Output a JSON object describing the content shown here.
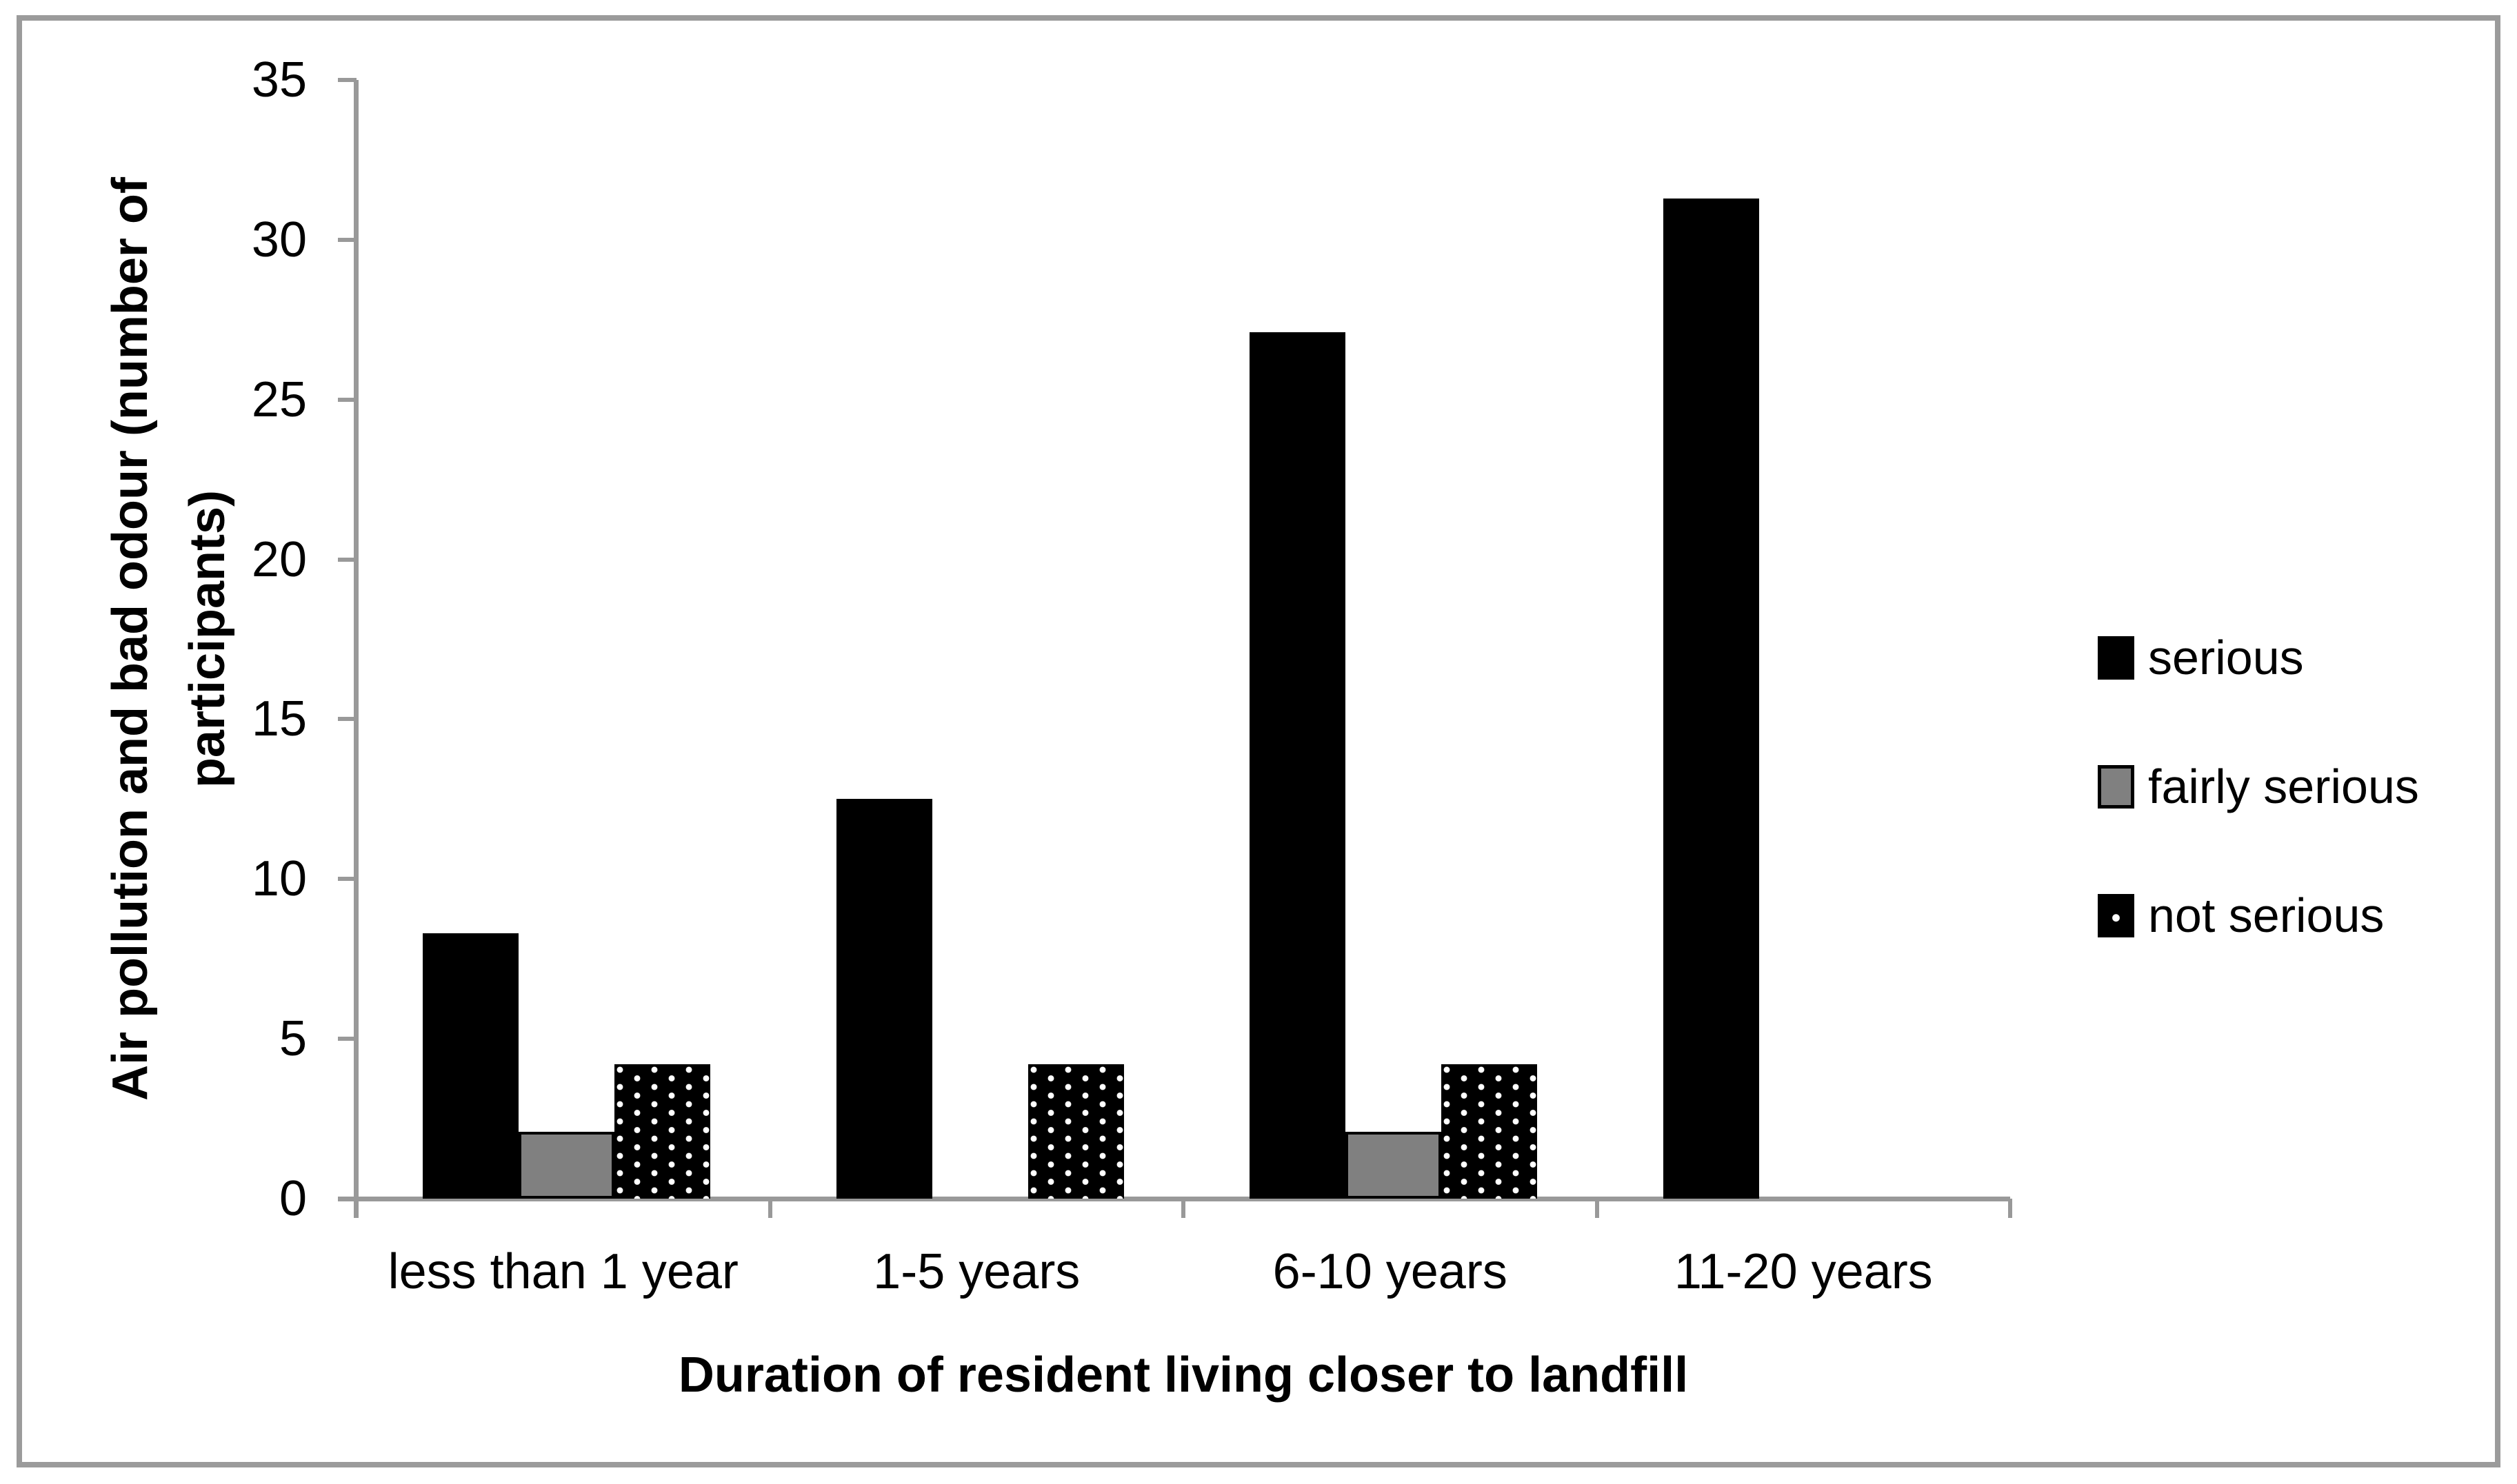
{
  "chart_data": {
    "type": "bar",
    "title": "",
    "categories": [
      "less than 1 year",
      "1-5 years",
      "6-10 years",
      "11-20 years"
    ],
    "series": [
      {
        "name": "serious",
        "style": "solid-black",
        "color": "#000000",
        "values": [
          8.3,
          12.5,
          27.1,
          31.3
        ]
      },
      {
        "name": "fairly serious",
        "style": "solid-gray",
        "color": "#808080",
        "values": [
          2.1,
          0,
          2.1,
          0
        ]
      },
      {
        "name": "not serious",
        "style": "black-white-dots",
        "color": "#000000",
        "values": [
          4.2,
          4.2,
          4.2,
          0
        ]
      }
    ],
    "xlabel": "Duration of resident living closer to landfill",
    "ylabel": "Air pollution and bad odour (number of participants)",
    "ylabel_line1": "Air pollution and bad odour (number of",
    "ylabel_line2": "participants)",
    "ylim": [
      0,
      35
    ],
    "yticks": [
      0,
      5,
      10,
      15,
      20,
      25,
      30,
      35
    ],
    "grid": false,
    "legend_position": "right",
    "colors": {
      "axis": "#999999",
      "frame": "#9b9b9b",
      "bar_gray": "#808080",
      "bar_black": "#000000",
      "text": "#000000"
    }
  }
}
